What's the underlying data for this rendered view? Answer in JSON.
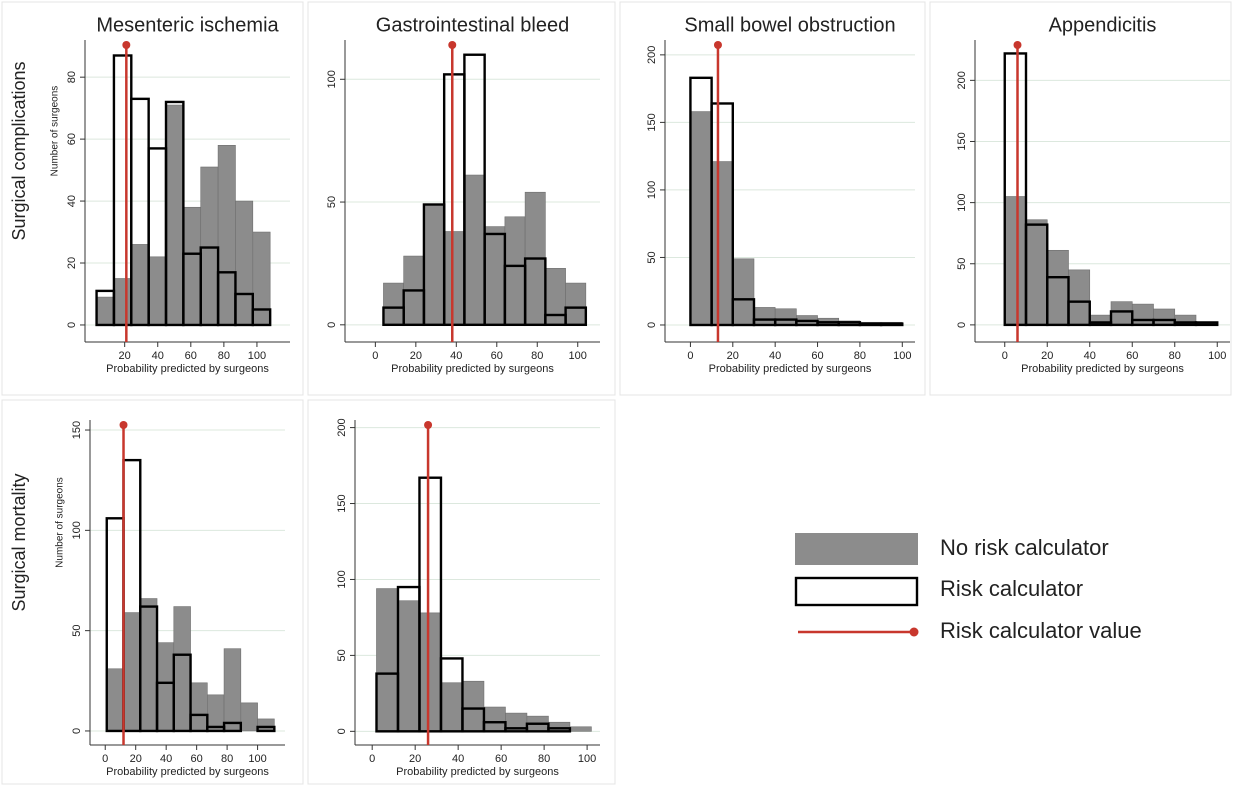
{
  "chart_data": [
    {
      "type": "histogram",
      "title": "Mesenteric ischemia",
      "row_label": "Surgical complications",
      "xlabel": "Probability predicted by surgeons",
      "ylabel": "Number of surgeons",
      "bins": [
        3,
        13.5,
        24,
        34.5,
        45,
        55.5,
        66,
        76.5,
        87,
        97.5,
        108
      ],
      "series": [
        {
          "name": "No risk calculator",
          "color": "#8c8c8c",
          "fill": true,
          "values": [
            9,
            15,
            26,
            22,
            71,
            38,
            51,
            58,
            40,
            30
          ]
        },
        {
          "name": "Risk calculator",
          "color": "#000000",
          "fill": false,
          "values": [
            11,
            87,
            73,
            57,
            72,
            23,
            25,
            17,
            10,
            5
          ]
        }
      ],
      "reference": {
        "name": "Risk calculator value",
        "value": 21,
        "color": "#c8372d"
      },
      "xlim": [
        -4,
        120
      ],
      "ylim": [
        -5.5,
        92
      ],
      "xticks": [
        20,
        40,
        60,
        80,
        100
      ],
      "yticks": [
        0,
        20,
        40,
        60,
        80
      ],
      "grid": true
    },
    {
      "type": "histogram",
      "title": "Gastrointestinal bleed",
      "xlabel": "Probability predicted by surgeons",
      "bins": [
        4,
        14,
        24,
        34,
        44,
        54,
        64,
        74,
        84,
        94,
        104
      ],
      "series": [
        {
          "color": "#8c8c8c",
          "fill": true,
          "values": [
            17,
            28,
            49,
            38,
            61,
            40,
            44,
            54,
            23,
            17
          ]
        },
        {
          "color": "#000000",
          "fill": false,
          "values": [
            7,
            14,
            49,
            102,
            110,
            37,
            24,
            27,
            4,
            7
          ]
        }
      ],
      "reference": {
        "value": 38,
        "color": "#c8372d"
      },
      "xlim": [
        -15,
        111
      ],
      "ylim": [
        -7,
        116
      ],
      "xticks": [
        0,
        20,
        40,
        60,
        80,
        100
      ],
      "yticks": [
        0,
        50,
        100
      ],
      "grid": true
    },
    {
      "type": "histogram",
      "title": "Small bowel obstruction",
      "xlabel": "Probability predicted by surgeons",
      "bins": [
        0,
        10,
        20,
        30,
        40,
        50,
        60,
        70,
        80,
        90,
        100
      ],
      "series": [
        {
          "color": "#8c8c8c",
          "fill": true,
          "values": [
            158,
            121,
            49,
            13,
            12,
            7,
            5,
            3,
            2,
            2
          ]
        },
        {
          "color": "#000000",
          "fill": false,
          "values": [
            183,
            164,
            19,
            4,
            4,
            3,
            2,
            2,
            1,
            1
          ]
        }
      ],
      "reference": {
        "value": 13,
        "color": "#c8372d"
      },
      "xlim": [
        -12,
        106
      ],
      "ylim": [
        -12.6,
        211
      ],
      "xticks": [
        0,
        20,
        40,
        60,
        80,
        100
      ],
      "yticks": [
        0,
        50,
        100,
        150,
        200
      ],
      "grid": true
    },
    {
      "type": "histogram",
      "title": "Appendicitis",
      "xlabel": "Probability predicted by surgeons",
      "bins": [
        0,
        10,
        20,
        30,
        40,
        50,
        60,
        70,
        80,
        90,
        100
      ],
      "series": [
        {
          "color": "#8c8c8c",
          "fill": true,
          "values": [
            105,
            86,
            61,
            45,
            8,
            19,
            17,
            13,
            8,
            2
          ]
        },
        {
          "color": "#000000",
          "fill": false,
          "values": [
            222,
            82,
            39,
            19,
            2,
            11,
            4,
            4,
            2,
            2
          ]
        }
      ],
      "reference": {
        "value": 6,
        "color": "#c8372d"
      },
      "xlim": [
        -14,
        106
      ],
      "ylim": [
        -14,
        233
      ],
      "xticks": [
        0,
        20,
        40,
        60,
        80,
        100
      ],
      "yticks": [
        0,
        50,
        100,
        150,
        200
      ],
      "grid": true
    },
    {
      "type": "histogram",
      "row_label": "Surgical mortality",
      "xlabel": "Probability predicted by surgeons",
      "ylabel": "Number of surgeons",
      "bins": [
        1,
        12,
        23,
        34,
        45,
        56,
        67,
        78,
        89,
        100,
        111
      ],
      "series": [
        {
          "color": "#8c8c8c",
          "fill": true,
          "values": [
            31,
            59,
            66,
            44,
            62,
            24,
            18,
            41,
            14,
            6
          ]
        },
        {
          "color": "#000000",
          "fill": false,
          "values": [
            106,
            135,
            62,
            24,
            38,
            8,
            2,
            4,
            0,
            2
          ]
        }
      ],
      "reference": {
        "value": 12,
        "color": "#c8372d"
      },
      "xlim": [
        -10,
        118
      ],
      "ylim": [
        -7,
        155
      ],
      "xticks": [
        0,
        20,
        40,
        60,
        80,
        100
      ],
      "yticks": [
        0,
        50,
        100,
        150
      ],
      "grid": true
    },
    {
      "type": "histogram",
      "xlabel": "Probability predicted by surgeons",
      "bins": [
        2,
        12,
        22,
        32,
        42,
        52,
        62,
        72,
        82,
        92,
        102
      ],
      "series": [
        {
          "color": "#8c8c8c",
          "fill": true,
          "values": [
            94,
            86,
            78,
            32,
            33,
            16,
            12,
            10,
            6,
            3
          ]
        },
        {
          "color": "#000000",
          "fill": false,
          "values": [
            38,
            95,
            167,
            48,
            15,
            6,
            2,
            5,
            2,
            0
          ]
        }
      ],
      "reference": {
        "value": 26,
        "color": "#c8372d"
      },
      "xlim": [
        -8,
        106
      ],
      "ylim": [
        -9,
        205
      ],
      "xticks": [
        0,
        20,
        40,
        60,
        80,
        100
      ],
      "yticks": [
        0,
        50,
        100,
        150,
        200
      ],
      "grid": true
    }
  ]
}
